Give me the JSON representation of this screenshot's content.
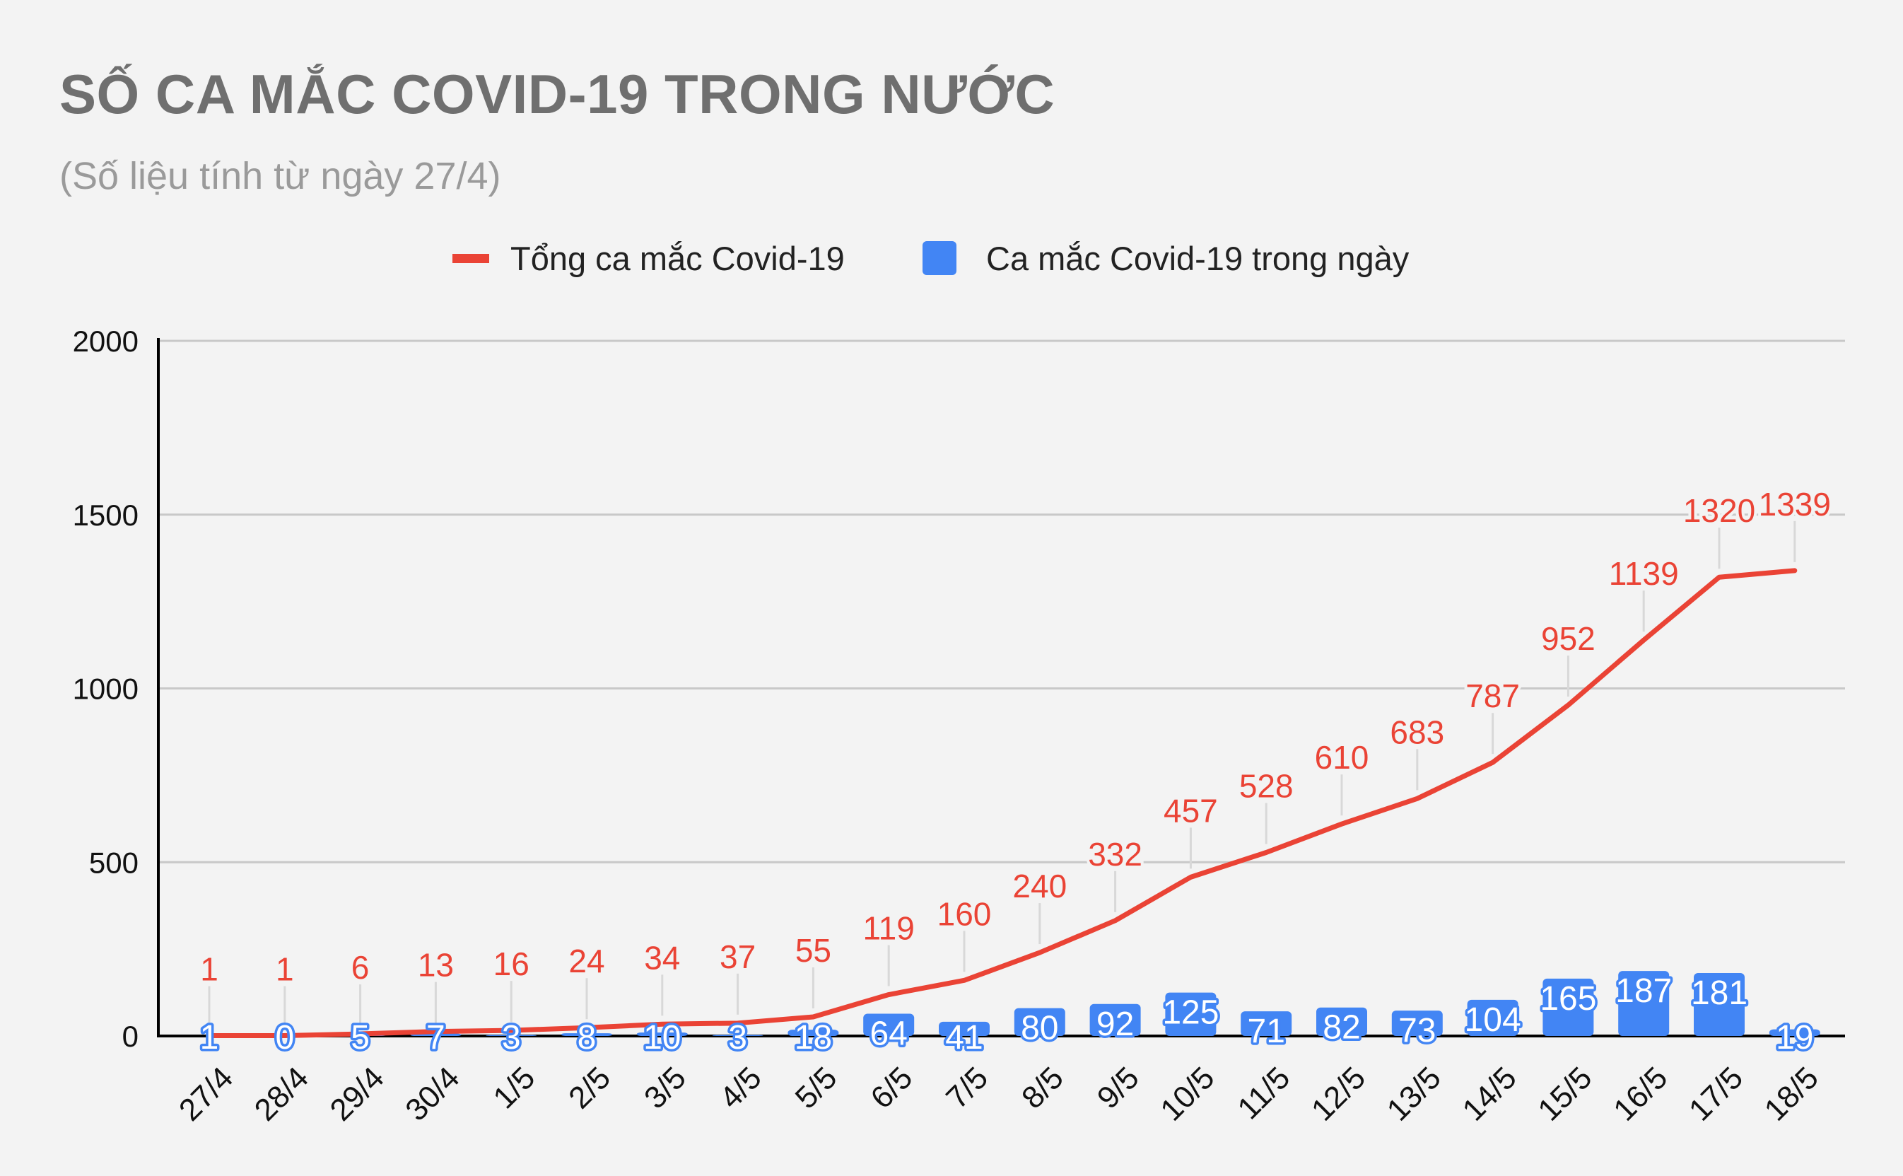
{
  "title": "SỐ CA MẮC COVID-19 TRONG NƯỚC",
  "subtitle": "(Số liệu tính từ ngày 27/4)",
  "legend": {
    "total_label": "Tổng ca mắc Covid-19",
    "daily_label": "Ca mắc Covid-19 trong ngày"
  },
  "colors": {
    "total": "#ea4335",
    "daily": "#4285f4",
    "grid": "#c8c8c8",
    "axis": "#000000"
  },
  "chart_data": {
    "type": "bar",
    "categories": [
      "27/4",
      "28/4",
      "29/4",
      "30/4",
      "1/5",
      "2/5",
      "3/5",
      "4/5",
      "5/5",
      "6/5",
      "7/5",
      "8/5",
      "9/5",
      "10/5",
      "11/5",
      "12/5",
      "13/5",
      "14/5",
      "15/5",
      "16/5",
      "17/5",
      "18/5"
    ],
    "series": [
      {
        "name": "Tổng ca mắc Covid-19",
        "type": "line",
        "values": [
          1,
          1,
          6,
          13,
          16,
          24,
          34,
          37,
          55,
          119,
          160,
          240,
          332,
          457,
          528,
          610,
          683,
          787,
          952,
          1139,
          1320,
          1339
        ]
      },
      {
        "name": "Ca mắc Covid-19 trong ngày",
        "type": "bar",
        "values": [
          1,
          0,
          5,
          7,
          3,
          8,
          10,
          3,
          18,
          64,
          41,
          80,
          92,
          125,
          71,
          82,
          73,
          104,
          165,
          187,
          181,
          19
        ]
      }
    ],
    "ylim": [
      0,
      2000
    ],
    "yticks": [
      0,
      500,
      1000,
      1500,
      2000
    ],
    "grid": true,
    "legend_position": "top"
  }
}
